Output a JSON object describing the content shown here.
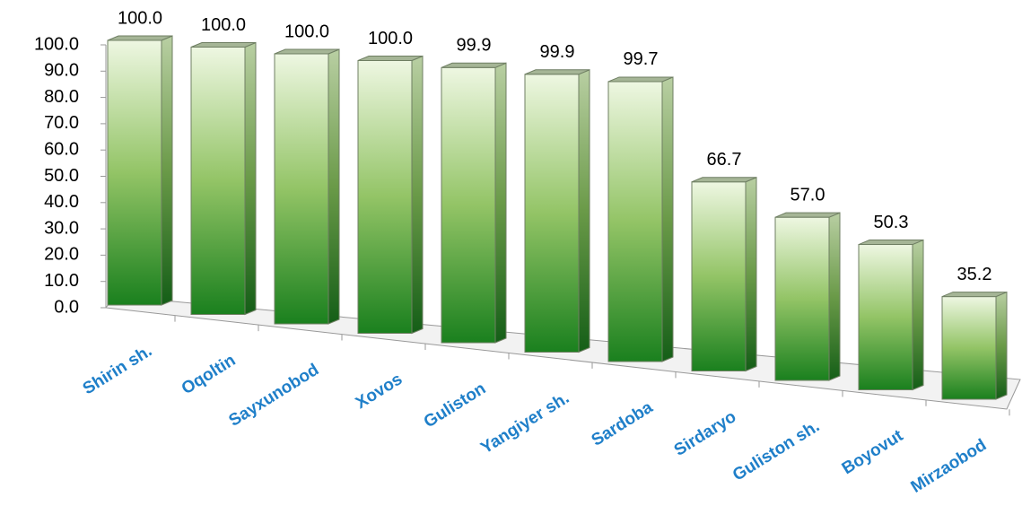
{
  "chart_data": {
    "type": "bar3d",
    "categories": [
      "Shirin sh.",
      "Oqoltin",
      "Sayxunobod",
      "Xovos",
      "Guliston",
      "Yangiyer sh.",
      "Sardoba",
      "Sirdaryo",
      "Guliston sh.",
      "Boyovut",
      "Mirzaobod"
    ],
    "values": [
      100,
      100,
      100,
      100,
      99.9,
      99.9,
      99.7,
      66.7,
      57,
      50.3,
      35.2
    ],
    "value_labels": [
      "100.0",
      "100.0",
      "100.0",
      "100.0",
      "99.9",
      "99.9",
      "99.7",
      "66.7",
      "57.0",
      "50.3",
      "35.2"
    ],
    "color": "#2e8b2e",
    "ylim": [
      0,
      100
    ],
    "yticks": [
      {
        "value": 0,
        "label": "0.0"
      },
      {
        "value": 10,
        "label": "10.0"
      },
      {
        "value": 20,
        "label": "20.0"
      },
      {
        "value": 30,
        "label": "30.0"
      },
      {
        "value": 40,
        "label": "40.0"
      },
      {
        "value": 50,
        "label": "50.0"
      },
      {
        "value": 60,
        "label": "60.0"
      },
      {
        "value": 70,
        "label": "70.0"
      },
      {
        "value": 80,
        "label": "80.0"
      },
      {
        "value": 90,
        "label": "90.0"
      },
      {
        "value": 100,
        "label": "100.0"
      }
    ],
    "grid": false
  }
}
